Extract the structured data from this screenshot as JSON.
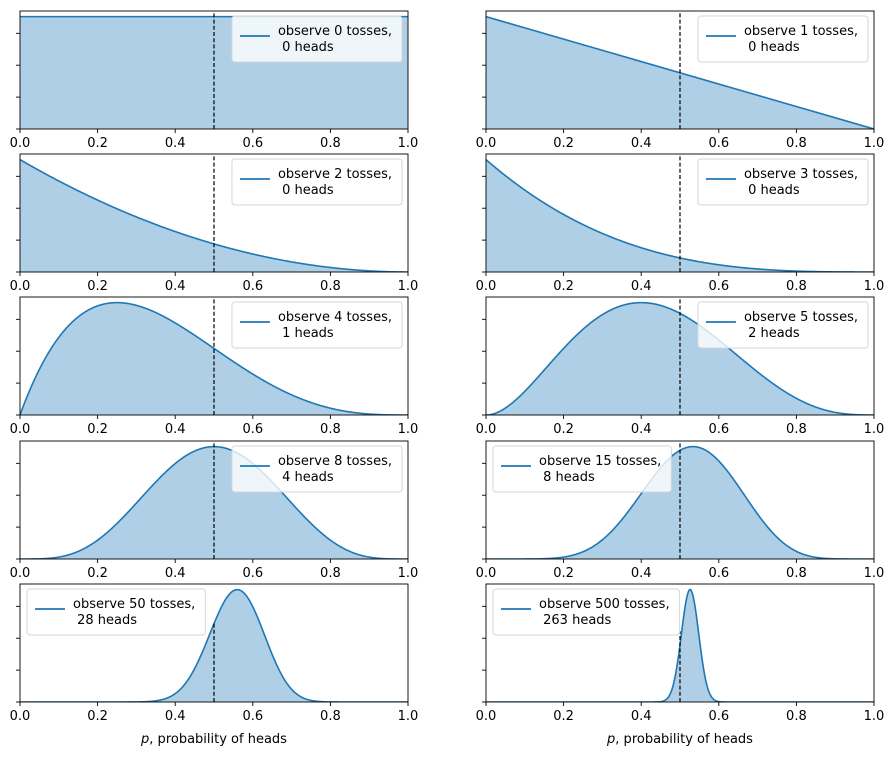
{
  "chart_data": [
    {
      "type": "area",
      "distribution": "beta",
      "tosses": 0,
      "heads": 0,
      "legend": "observe 0 tosses,\n 0 heads",
      "legend_position": "upper-right",
      "reference_line_x": 0.5,
      "xlim": [
        0,
        1
      ],
      "x_ticks": [
        "0.0",
        "0.2",
        "0.4",
        "0.6",
        "0.8",
        "1.0"
      ],
      "y_tick_labels": "hidden",
      "xlabel": ""
    },
    {
      "type": "area",
      "distribution": "beta",
      "tosses": 1,
      "heads": 0,
      "legend": "observe 1 tosses,\n 0 heads",
      "legend_position": "upper-right",
      "reference_line_x": 0.5,
      "xlim": [
        0,
        1
      ],
      "x_ticks": [
        "0.0",
        "0.2",
        "0.4",
        "0.6",
        "0.8",
        "1.0"
      ],
      "y_tick_labels": "hidden",
      "xlabel": ""
    },
    {
      "type": "area",
      "distribution": "beta",
      "tosses": 2,
      "heads": 0,
      "legend": "observe 2 tosses,\n 0 heads",
      "legend_position": "upper-right",
      "reference_line_x": 0.5,
      "xlim": [
        0,
        1
      ],
      "x_ticks": [
        "0.0",
        "0.2",
        "0.4",
        "0.6",
        "0.8",
        "1.0"
      ],
      "y_tick_labels": "hidden",
      "xlabel": ""
    },
    {
      "type": "area",
      "distribution": "beta",
      "tosses": 3,
      "heads": 0,
      "legend": "observe 3 tosses,\n 0 heads",
      "legend_position": "upper-right",
      "reference_line_x": 0.5,
      "xlim": [
        0,
        1
      ],
      "x_ticks": [
        "0.0",
        "0.2",
        "0.4",
        "0.6",
        "0.8",
        "1.0"
      ],
      "y_tick_labels": "hidden",
      "xlabel": ""
    },
    {
      "type": "area",
      "distribution": "beta",
      "tosses": 4,
      "heads": 1,
      "legend": "observe 4 tosses,\n 1 heads",
      "legend_position": "upper-right",
      "reference_line_x": 0.5,
      "xlim": [
        0,
        1
      ],
      "x_ticks": [
        "0.0",
        "0.2",
        "0.4",
        "0.6",
        "0.8",
        "1.0"
      ],
      "y_tick_labels": "hidden",
      "xlabel": ""
    },
    {
      "type": "area",
      "distribution": "beta",
      "tosses": 5,
      "heads": 2,
      "legend": "observe 5 tosses,\n 2 heads",
      "legend_position": "upper-right",
      "reference_line_x": 0.5,
      "xlim": [
        0,
        1
      ],
      "x_ticks": [
        "0.0",
        "0.2",
        "0.4",
        "0.6",
        "0.8",
        "1.0"
      ],
      "y_tick_labels": "hidden",
      "xlabel": ""
    },
    {
      "type": "area",
      "distribution": "beta",
      "tosses": 8,
      "heads": 4,
      "legend": "observe 8 tosses,\n 4 heads",
      "legend_position": "upper-right",
      "reference_line_x": 0.5,
      "xlim": [
        0,
        1
      ],
      "x_ticks": [
        "0.0",
        "0.2",
        "0.4",
        "0.6",
        "0.8",
        "1.0"
      ],
      "y_tick_labels": "hidden",
      "xlabel": ""
    },
    {
      "type": "area",
      "distribution": "beta",
      "tosses": 15,
      "heads": 8,
      "legend": "observe 15 tosses,\n 8 heads",
      "legend_position": "upper-left",
      "reference_line_x": 0.5,
      "xlim": [
        0,
        1
      ],
      "x_ticks": [
        "0.0",
        "0.2",
        "0.4",
        "0.6",
        "0.8",
        "1.0"
      ],
      "y_tick_labels": "hidden",
      "xlabel": ""
    },
    {
      "type": "area",
      "distribution": "beta",
      "tosses": 50,
      "heads": 28,
      "legend": "observe 50 tosses,\n 28 heads",
      "legend_position": "upper-left",
      "reference_line_x": 0.5,
      "xlim": [
        0,
        1
      ],
      "x_ticks": [
        "0.0",
        "0.2",
        "0.4",
        "0.6",
        "0.8",
        "1.0"
      ],
      "y_tick_labels": "hidden",
      "xlabel": "p, probability of heads"
    },
    {
      "type": "area",
      "distribution": "beta",
      "tosses": 500,
      "heads": 263,
      "legend": "observe 500 tosses,\n 263 heads",
      "legend_position": "upper-left",
      "reference_line_x": 0.5,
      "xlim": [
        0,
        1
      ],
      "x_ticks": [
        "0.0",
        "0.2",
        "0.4",
        "0.6",
        "0.8",
        "1.0"
      ],
      "y_tick_labels": "hidden",
      "xlabel": "p, probability of heads"
    }
  ],
  "colors": {
    "line": "#1f77b4",
    "fill": "#aecfe6",
    "reference_line": "#000000"
  }
}
